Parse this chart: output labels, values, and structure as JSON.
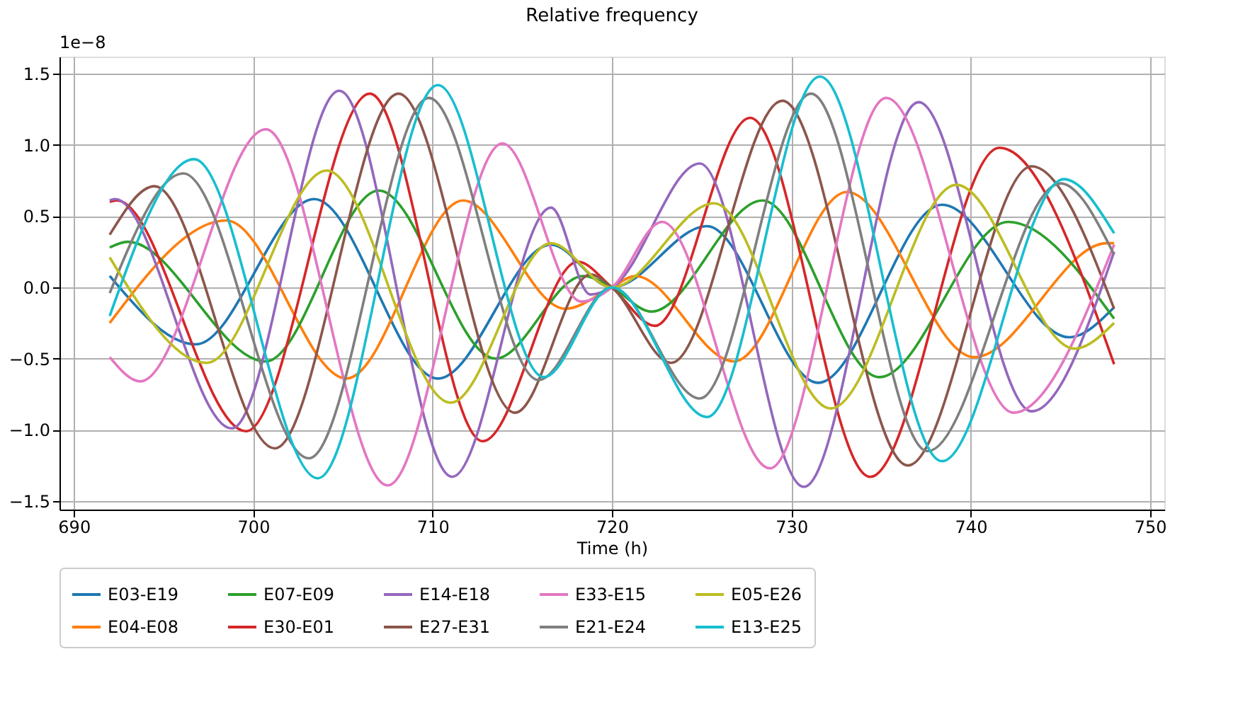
{
  "chart_data": {
    "type": "line",
    "title": "Relative frequency",
    "xlabel": "Time (h)",
    "annotations": [
      "1e−8"
    ],
    "xlim": [
      689.2,
      750.8
    ],
    "xticks": [
      690,
      700,
      710,
      720,
      730,
      740,
      750
    ],
    "ylim": [
      -1.56,
      1.62
    ],
    "yticks": [
      {
        "value": -1.5,
        "label": "−1.5"
      },
      {
        "value": -1.0,
        "label": "−1.0"
      },
      {
        "value": -0.5,
        "label": "−0.5"
      },
      {
        "value": 0,
        "label": "0.0"
      },
      {
        "value": 0.5,
        "label": "0.5"
      },
      {
        "value": 1.0,
        "label": "1.0"
      },
      {
        "value": 1.5,
        "label": "1.5"
      }
    ],
    "grid": true,
    "legend": "bottom",
    "marker": "none",
    "line_style": "solid",
    "series": [
      {
        "name": "E03-E19",
        "color": "#1f77b4",
        "x": [
          692,
          696.8,
          703.4,
          710.3,
          716.6,
          720,
          725.3,
          731.5,
          738.4,
          745.5,
          748
        ],
        "values": [
          0.08,
          -0.4,
          0.62,
          -0.64,
          0.3,
          0,
          0.43,
          -0.67,
          0.58,
          -0.35,
          -0.14
        ]
      },
      {
        "name": "E04-E08",
        "color": "#ff7f0e",
        "x": [
          692,
          698.5,
          705.2,
          711.7,
          717.4,
          720,
          721.3,
          726.8,
          733.1,
          740.2,
          747.6,
          748
        ],
        "values": [
          -0.25,
          0.47,
          -0.64,
          0.61,
          -0.15,
          0,
          0.08,
          -0.52,
          0.67,
          -0.49,
          0.31,
          0.31
        ]
      },
      {
        "name": "E07-E09",
        "color": "#2ca02c",
        "x": [
          692,
          693,
          700.7,
          707,
          713.5,
          718.4,
          720,
          722.2,
          728.4,
          734.9,
          742.1,
          748
        ],
        "values": [
          0.28,
          0.32,
          -0.52,
          0.68,
          -0.5,
          0.08,
          0,
          -0.17,
          0.61,
          -0.63,
          0.46,
          -0.22
        ]
      },
      {
        "name": "E30-E01",
        "color": "#d62728",
        "x": [
          692,
          692.4,
          699.6,
          706.5,
          712.8,
          718.1,
          720,
          722.4,
          727.7,
          734.4,
          741.6,
          748
        ],
        "values": [
          0.6,
          0.61,
          -1.01,
          1.36,
          -1.08,
          0.18,
          0,
          -0.27,
          1.19,
          -1.33,
          0.98,
          -0.54
        ]
      },
      {
        "name": "E14-E18",
        "color": "#9467bd",
        "x": [
          692,
          692.3,
          698.8,
          704.8,
          711.1,
          716.6,
          718.8,
          720,
          724.9,
          730.7,
          737.1,
          743.4,
          748
        ],
        "values": [
          0.61,
          0.62,
          -0.99,
          1.38,
          -1.33,
          0.56,
          -0.05,
          0,
          0.87,
          -1.4,
          1.3,
          -0.87,
          0.25
        ]
      },
      {
        "name": "E27-E31",
        "color": "#8c564b",
        "x": [
          692,
          694.5,
          701.2,
          708.1,
          714.6,
          718.8,
          720,
          723.3,
          729.5,
          736.5,
          743.4,
          748
        ],
        "values": [
          0.37,
          0.71,
          -1.13,
          1.36,
          -0.88,
          0.09,
          0,
          -0.53,
          1.31,
          -1.25,
          0.85,
          -0.15
        ]
      },
      {
        "name": "E33-E15",
        "color": "#e377c2",
        "x": [
          692,
          693.7,
          700.7,
          707.5,
          713.9,
          718.3,
          720,
          722.8,
          728.8,
          735.3,
          742.4,
          748
        ],
        "values": [
          -0.49,
          -0.66,
          1.11,
          -1.39,
          1.01,
          -0.1,
          0,
          0.46,
          -1.27,
          1.33,
          -0.88,
          0.3
        ]
      },
      {
        "name": "E21-E24",
        "color": "#7f7f7f",
        "x": [
          692,
          696.1,
          703.1,
          709.8,
          715.9,
          720,
          724.9,
          731.1,
          737.6,
          745,
          748
        ],
        "values": [
          -0.04,
          0.8,
          -1.2,
          1.33,
          -0.65,
          0,
          -0.78,
          1.36,
          -1.15,
          0.73,
          0.23
        ]
      },
      {
        "name": "E05-E26",
        "color": "#bcbd22",
        "x": [
          692,
          697.4,
          704.1,
          711,
          716.6,
          720,
          725.7,
          732.2,
          739.2,
          745.8,
          748
        ],
        "values": [
          0.21,
          -0.53,
          0.82,
          -0.81,
          0.31,
          0,
          0.59,
          -0.85,
          0.72,
          -0.43,
          -0.25
        ]
      },
      {
        "name": "E13-E25",
        "color": "#17becf",
        "x": [
          692,
          696.7,
          703.6,
          710.3,
          716.2,
          720,
          725.3,
          731.6,
          738.4,
          745.2,
          748
        ],
        "values": [
          -0.2,
          0.9,
          -1.34,
          1.42,
          -0.63,
          0,
          -0.91,
          1.48,
          -1.22,
          0.76,
          0.38
        ]
      }
    ]
  }
}
